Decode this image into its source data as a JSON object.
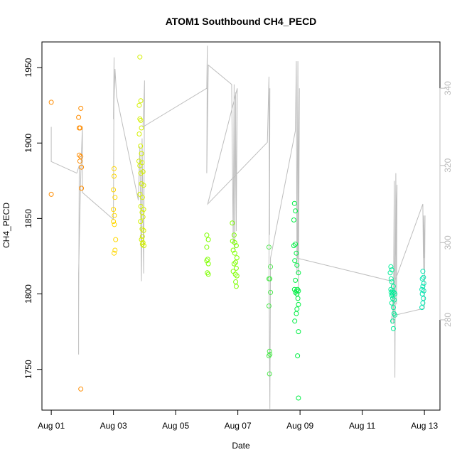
{
  "chart_data": {
    "type": "scatter",
    "title": "ATOM1 Southbound CH4_PECD",
    "xlabel": "Date",
    "ylabel": "CH4_PECD",
    "x_unit": "days",
    "xlim": [
      -0.3,
      12.5
    ],
    "ylim": [
      1723,
      1967
    ],
    "x_ticks": [
      0,
      2,
      4,
      6,
      8,
      10,
      12
    ],
    "x_tick_labels": [
      "Aug 01",
      "Aug 03",
      "Aug 05",
      "Aug 07",
      "Aug 09",
      "Aug 11",
      "Aug 13"
    ],
    "y_ticks": [
      1750,
      1800,
      1850,
      1900,
      1950
    ],
    "y_tick_labels": [
      "1750",
      "1800",
      "1850",
      "1900",
      "1950"
    ],
    "secondary_y": {
      "label": "",
      "ylim": [
        256.6,
        352
      ],
      "ticks": [
        280,
        300,
        320,
        340
      ],
      "tick_labels": [
        "280",
        "300",
        "320",
        "340"
      ],
      "color": "#bebebe"
    },
    "grid": false,
    "legend": "none",
    "colors": {
      "orange": "#ff8c00",
      "gold": "#ffd700",
      "yellow": "#d4f000",
      "lime": "#7fff00",
      "lime2": "#50e850",
      "green": "#00ee44",
      "aqua": "#00ee99",
      "teal": "#00e6b0",
      "line": "#bebebe"
    },
    "points": [
      {
        "x": 0.0,
        "y": 1927,
        "c": "orange"
      },
      {
        "x": 0.0,
        "y": 1866,
        "c": "orange"
      },
      {
        "x": 0.88,
        "y": 1917,
        "c": "orange"
      },
      {
        "x": 0.9,
        "y": 1910,
        "c": "orange"
      },
      {
        "x": 0.9,
        "y": 1892,
        "c": "orange"
      },
      {
        "x": 0.92,
        "y": 1888,
        "c": "orange"
      },
      {
        "x": 0.95,
        "y": 1923,
        "c": "orange"
      },
      {
        "x": 0.95,
        "y": 1891,
        "c": "orange"
      },
      {
        "x": 0.97,
        "y": 1870,
        "c": "orange"
      },
      {
        "x": 0.97,
        "y": 1884,
        "c": "orange"
      },
      {
        "x": 0.95,
        "y": 1737,
        "c": "orange"
      },
      {
        "x": 0.93,
        "y": 1910,
        "c": "orange"
      },
      {
        "x": 2.0,
        "y": 1869,
        "c": "gold"
      },
      {
        "x": 2.02,
        "y": 1883,
        "c": "gold"
      },
      {
        "x": 2.02,
        "y": 1878,
        "c": "gold"
      },
      {
        "x": 2.05,
        "y": 1864,
        "c": "gold"
      },
      {
        "x": 2.0,
        "y": 1856,
        "c": "gold"
      },
      {
        "x": 2.03,
        "y": 1852,
        "c": "gold"
      },
      {
        "x": 2.0,
        "y": 1848,
        "c": "gold"
      },
      {
        "x": 2.03,
        "y": 1846,
        "c": "gold"
      },
      {
        "x": 2.07,
        "y": 1836,
        "c": "gold"
      },
      {
        "x": 2.05,
        "y": 1829,
        "c": "gold"
      },
      {
        "x": 2.02,
        "y": 1827,
        "c": "gold"
      },
      {
        "x": 2.85,
        "y": 1957,
        "c": "yellow"
      },
      {
        "x": 2.83,
        "y": 1925,
        "c": "yellow"
      },
      {
        "x": 2.88,
        "y": 1928,
        "c": "yellow"
      },
      {
        "x": 2.85,
        "y": 1916,
        "c": "yellow"
      },
      {
        "x": 2.88,
        "y": 1915,
        "c": "yellow"
      },
      {
        "x": 2.9,
        "y": 1910,
        "c": "yellow"
      },
      {
        "x": 2.83,
        "y": 1906,
        "c": "yellow"
      },
      {
        "x": 2.87,
        "y": 1898,
        "c": "yellow"
      },
      {
        "x": 2.9,
        "y": 1893,
        "c": "yellow"
      },
      {
        "x": 2.82,
        "y": 1888,
        "c": "yellow"
      },
      {
        "x": 2.85,
        "y": 1885,
        "c": "yellow"
      },
      {
        "x": 2.92,
        "y": 1887,
        "c": "yellow"
      },
      {
        "x": 2.88,
        "y": 1880,
        "c": "yellow"
      },
      {
        "x": 2.95,
        "y": 1881,
        "c": "yellow"
      },
      {
        "x": 2.9,
        "y": 1873,
        "c": "yellow"
      },
      {
        "x": 2.97,
        "y": 1872,
        "c": "yellow"
      },
      {
        "x": 2.85,
        "y": 1866,
        "c": "yellow"
      },
      {
        "x": 2.93,
        "y": 1864,
        "c": "yellow"
      },
      {
        "x": 2.88,
        "y": 1858,
        "c": "yellow"
      },
      {
        "x": 2.97,
        "y": 1856,
        "c": "yellow"
      },
      {
        "x": 2.92,
        "y": 1854,
        "c": "yellow"
      },
      {
        "x": 2.95,
        "y": 1851,
        "c": "yellow"
      },
      {
        "x": 2.87,
        "y": 1848,
        "c": "yellow"
      },
      {
        "x": 2.92,
        "y": 1843,
        "c": "yellow"
      },
      {
        "x": 2.97,
        "y": 1842,
        "c": "yellow"
      },
      {
        "x": 2.93,
        "y": 1838,
        "c": "yellow"
      },
      {
        "x": 2.9,
        "y": 1836,
        "c": "yellow"
      },
      {
        "x": 2.95,
        "y": 1834,
        "c": "yellow"
      },
      {
        "x": 2.98,
        "y": 1832,
        "c": "yellow"
      },
      {
        "x": 2.93,
        "y": 1833,
        "c": "yellow"
      },
      {
        "x": 5.0,
        "y": 1839,
        "c": "lime"
      },
      {
        "x": 5.05,
        "y": 1836,
        "c": "lime"
      },
      {
        "x": 5.0,
        "y": 1831,
        "c": "lime"
      },
      {
        "x": 5.03,
        "y": 1823,
        "c": "lime"
      },
      {
        "x": 5.0,
        "y": 1822,
        "c": "lime"
      },
      {
        "x": 5.05,
        "y": 1820,
        "c": "lime"
      },
      {
        "x": 5.02,
        "y": 1814,
        "c": "lime"
      },
      {
        "x": 5.05,
        "y": 1813,
        "c": "lime"
      },
      {
        "x": 5.82,
        "y": 1847,
        "c": "lime"
      },
      {
        "x": 5.88,
        "y": 1839,
        "c": "lime"
      },
      {
        "x": 5.83,
        "y": 1835,
        "c": "lime"
      },
      {
        "x": 5.9,
        "y": 1834,
        "c": "lime"
      },
      {
        "x": 5.95,
        "y": 1832,
        "c": "lime"
      },
      {
        "x": 5.85,
        "y": 1829,
        "c": "lime"
      },
      {
        "x": 5.9,
        "y": 1827,
        "c": "lime"
      },
      {
        "x": 5.97,
        "y": 1824,
        "c": "lime"
      },
      {
        "x": 5.93,
        "y": 1821,
        "c": "lime"
      },
      {
        "x": 5.88,
        "y": 1820,
        "c": "lime"
      },
      {
        "x": 5.95,
        "y": 1817,
        "c": "lime"
      },
      {
        "x": 5.85,
        "y": 1815,
        "c": "lime"
      },
      {
        "x": 5.92,
        "y": 1813,
        "c": "lime"
      },
      {
        "x": 5.97,
        "y": 1812,
        "c": "lime"
      },
      {
        "x": 5.93,
        "y": 1808,
        "c": "lime"
      },
      {
        "x": 5.95,
        "y": 1805,
        "c": "lime"
      },
      {
        "x": 7.0,
        "y": 1831,
        "c": "lime2"
      },
      {
        "x": 7.05,
        "y": 1818,
        "c": "lime2"
      },
      {
        "x": 7.0,
        "y": 1810,
        "c": "lime2"
      },
      {
        "x": 7.03,
        "y": 1810,
        "c": "lime2"
      },
      {
        "x": 7.05,
        "y": 1801,
        "c": "lime2"
      },
      {
        "x": 7.0,
        "y": 1792,
        "c": "lime2"
      },
      {
        "x": 7.02,
        "y": 1762,
        "c": "lime2"
      },
      {
        "x": 7.03,
        "y": 1760,
        "c": "lime2"
      },
      {
        "x": 7.0,
        "y": 1759,
        "c": "lime2"
      },
      {
        "x": 7.02,
        "y": 1747,
        "c": "lime2"
      },
      {
        "x": 7.82,
        "y": 1860,
        "c": "green"
      },
      {
        "x": 7.85,
        "y": 1855,
        "c": "green"
      },
      {
        "x": 7.8,
        "y": 1849,
        "c": "green"
      },
      {
        "x": 7.85,
        "y": 1833,
        "c": "green"
      },
      {
        "x": 7.8,
        "y": 1832,
        "c": "green"
      },
      {
        "x": 7.88,
        "y": 1827,
        "c": "green"
      },
      {
        "x": 7.83,
        "y": 1822,
        "c": "green"
      },
      {
        "x": 7.9,
        "y": 1819,
        "c": "green"
      },
      {
        "x": 7.95,
        "y": 1814,
        "c": "green"
      },
      {
        "x": 7.85,
        "y": 1809,
        "c": "green"
      },
      {
        "x": 7.82,
        "y": 1803,
        "c": "green"
      },
      {
        "x": 7.88,
        "y": 1802,
        "c": "green"
      },
      {
        "x": 7.92,
        "y": 1803,
        "c": "green"
      },
      {
        "x": 7.95,
        "y": 1802,
        "c": "green"
      },
      {
        "x": 7.9,
        "y": 1800,
        "c": "green"
      },
      {
        "x": 7.85,
        "y": 1801,
        "c": "green"
      },
      {
        "x": 7.93,
        "y": 1797,
        "c": "green"
      },
      {
        "x": 7.95,
        "y": 1793,
        "c": "green"
      },
      {
        "x": 7.9,
        "y": 1790,
        "c": "green"
      },
      {
        "x": 7.88,
        "y": 1787,
        "c": "green"
      },
      {
        "x": 7.83,
        "y": 1782,
        "c": "green"
      },
      {
        "x": 7.95,
        "y": 1775,
        "c": "green"
      },
      {
        "x": 7.92,
        "y": 1759,
        "c": "green"
      },
      {
        "x": 7.95,
        "y": 1731,
        "c": "green"
      },
      {
        "x": 10.92,
        "y": 1818,
        "c": "aqua"
      },
      {
        "x": 10.95,
        "y": 1816,
        "c": "aqua"
      },
      {
        "x": 10.9,
        "y": 1814,
        "c": "aqua"
      },
      {
        "x": 10.93,
        "y": 1810,
        "c": "aqua"
      },
      {
        "x": 10.95,
        "y": 1808,
        "c": "aqua"
      },
      {
        "x": 11.0,
        "y": 1805,
        "c": "aqua"
      },
      {
        "x": 10.92,
        "y": 1803,
        "c": "aqua"
      },
      {
        "x": 10.97,
        "y": 1802,
        "c": "aqua"
      },
      {
        "x": 10.93,
        "y": 1801,
        "c": "aqua"
      },
      {
        "x": 11.02,
        "y": 1801,
        "c": "aqua"
      },
      {
        "x": 10.97,
        "y": 1800,
        "c": "aqua"
      },
      {
        "x": 11.05,
        "y": 1800,
        "c": "aqua"
      },
      {
        "x": 10.95,
        "y": 1799,
        "c": "aqua"
      },
      {
        "x": 10.98,
        "y": 1797,
        "c": "aqua"
      },
      {
        "x": 11.03,
        "y": 1796,
        "c": "aqua"
      },
      {
        "x": 10.95,
        "y": 1794,
        "c": "aqua"
      },
      {
        "x": 11.0,
        "y": 1791,
        "c": "aqua"
      },
      {
        "x": 11.02,
        "y": 1787,
        "c": "aqua"
      },
      {
        "x": 11.05,
        "y": 1786,
        "c": "aqua"
      },
      {
        "x": 10.98,
        "y": 1782,
        "c": "aqua"
      },
      {
        "x": 11.0,
        "y": 1777,
        "c": "aqua"
      },
      {
        "x": 11.95,
        "y": 1815,
        "c": "teal"
      },
      {
        "x": 11.97,
        "y": 1811,
        "c": "teal"
      },
      {
        "x": 11.93,
        "y": 1810,
        "c": "teal"
      },
      {
        "x": 11.98,
        "y": 1807,
        "c": "teal"
      },
      {
        "x": 11.95,
        "y": 1805,
        "c": "teal"
      },
      {
        "x": 11.92,
        "y": 1803,
        "c": "teal"
      },
      {
        "x": 11.98,
        "y": 1802,
        "c": "teal"
      },
      {
        "x": 11.93,
        "y": 1800,
        "c": "teal"
      },
      {
        "x": 11.97,
        "y": 1797,
        "c": "teal"
      },
      {
        "x": 11.95,
        "y": 1794,
        "c": "teal"
      },
      {
        "x": 11.92,
        "y": 1791,
        "c": "teal"
      }
    ],
    "line_right_axis": [
      [
        0.0,
        330
      ],
      [
        0.0,
        321
      ],
      [
        0.82,
        318
      ],
      [
        0.9,
        320
      ],
      [
        0.88,
        280
      ],
      [
        0.88,
        271
      ],
      [
        0.88,
        292
      ],
      [
        0.95,
        318
      ],
      [
        1.0,
        330
      ],
      [
        1.0,
        313
      ],
      [
        2.0,
        306
      ],
      [
        2.02,
        348
      ],
      [
        2.0,
        332
      ],
      [
        2.05,
        345
      ],
      [
        2.1,
        338
      ],
      [
        2.8,
        311
      ],
      [
        2.85,
        325
      ],
      [
        2.9,
        290
      ],
      [
        2.92,
        327
      ],
      [
        2.97,
        292
      ],
      [
        3.0,
        342
      ],
      [
        2.95,
        330
      ],
      [
        5.0,
        340
      ],
      [
        5.02,
        351
      ],
      [
        5.0,
        318
      ],
      [
        5.05,
        346
      ],
      [
        5.8,
        341
      ],
      [
        5.85,
        300
      ],
      [
        5.88,
        341
      ],
      [
        5.9,
        298
      ],
      [
        5.93,
        339
      ],
      [
        5.95,
        303
      ],
      [
        5.98,
        340
      ],
      [
        5.03,
        310
      ],
      [
        6.95,
        326
      ],
      [
        7.0,
        343
      ],
      [
        7.02,
        302
      ],
      [
        7.03,
        340
      ],
      [
        7.0,
        294
      ],
      [
        7.03,
        256.9
      ],
      [
        7.05,
        296
      ],
      [
        7.85,
        329
      ],
      [
        7.88,
        347
      ],
      [
        7.9,
        292
      ],
      [
        7.93,
        347
      ],
      [
        7.95,
        286
      ],
      [
        7.98,
        340
      ],
      [
        7.92,
        296
      ],
      [
        7.9,
        296
      ],
      [
        10.95,
        290
      ],
      [
        11.0,
        279
      ],
      [
        11.03,
        316
      ],
      [
        11.05,
        265
      ],
      [
        11.08,
        318
      ],
      [
        11.1,
        284
      ],
      [
        11.12,
        315
      ],
      [
        11.05,
        290
      ],
      [
        11.95,
        310
      ],
      [
        11.97,
        293
      ],
      [
        11.98,
        307
      ],
      [
        12.0,
        296
      ],
      [
        12.02,
        307
      ],
      [
        12.0,
        283
      ],
      [
        10.95,
        281
      ],
      [
        10.93,
        279
      ]
    ]
  }
}
